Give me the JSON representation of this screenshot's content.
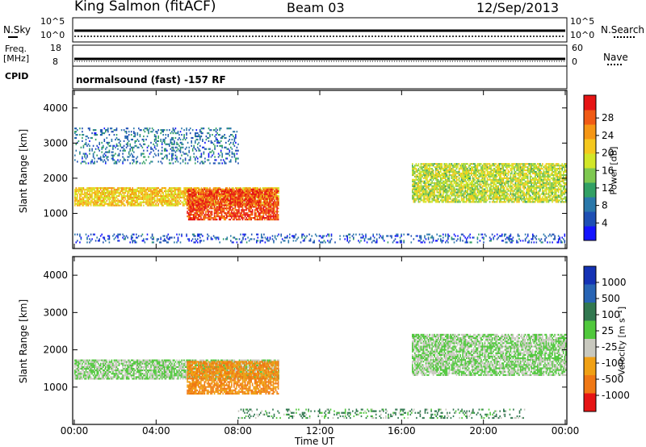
{
  "header": {
    "station": "King Salmon (fitACF)",
    "beam": "Beam 03",
    "date": "12/Sep/2013"
  },
  "status_panels": {
    "nsky_label": "N.Sky",
    "nsearch_label": "N.Search",
    "freq_label": "Freq.",
    "freq_unit": "[MHz]",
    "nave_label": "Nave",
    "cpid_label": "CPID",
    "cpid_text": "normalsound (fast) -157 RF",
    "noise_left_ticks": [
      "10^5",
      "10^0"
    ],
    "noise_right_ticks": [
      "10^5",
      "10^0"
    ],
    "freq_left_ticks": [
      "18",
      "8"
    ],
    "nave_right_ticks": [
      "60",
      "0"
    ]
  },
  "chart_data": [
    {
      "type": "heatmap",
      "name": "power",
      "ylabel": "Slant Range [km]",
      "xlabel": "",
      "ylim": [
        0,
        4500
      ],
      "yticks": [
        "1000",
        "2000",
        "3000",
        "4000"
      ],
      "xticks": [
        "00:00",
        "04:00",
        "08:00",
        "12:00",
        "16:00",
        "20:00",
        "00:00"
      ],
      "colorbar": {
        "label": "Power [dB]",
        "ticks": [
          "4",
          "8",
          "12",
          "16",
          "20",
          "24",
          "28"
        ],
        "colors": [
          "#1414ff",
          "#1e4fb4",
          "#2a78aa",
          "#32a064",
          "#7ec850",
          "#d2e628",
          "#f5c81e",
          "#f59614",
          "#f05a14",
          "#e61414"
        ]
      },
      "echo_regions": [
        {
          "name": "main-band",
          "time_h": [
            0,
            10
          ],
          "range_km": [
            1200,
            1700
          ],
          "power_db": 20
        },
        {
          "name": "sporadic-e-patch",
          "time_h": [
            5.5,
            10
          ],
          "range_km": [
            800,
            1700
          ],
          "power_db": 28
        },
        {
          "name": "far-range-echoes",
          "time_h": [
            0,
            8
          ],
          "range_km": [
            2400,
            3400
          ],
          "power_db": 6
        },
        {
          "name": "evening-band",
          "time_h": [
            16.5,
            24
          ],
          "range_km": [
            1300,
            2400
          ],
          "power_db": 16
        },
        {
          "name": "near-range-clutter",
          "time_h": [
            0,
            24
          ],
          "range_km": [
            150,
            400
          ],
          "power_db": 4
        }
      ]
    },
    {
      "type": "heatmap",
      "name": "velocity",
      "ylabel": "Slant Range [km]",
      "xlabel": "Time UT",
      "ylim": [
        0,
        4500
      ],
      "yticks": [
        "1000",
        "2000",
        "3000",
        "4000"
      ],
      "xticks": [
        "00:00",
        "04:00",
        "08:00",
        "12:00",
        "16:00",
        "20:00",
        "00:00"
      ],
      "colorbar": {
        "label": "Velocity [m s⁻¹]",
        "ticks": [
          "1000",
          "500",
          "100",
          "25",
          "-25",
          "-100",
          "-500",
          "-1000"
        ],
        "colors": [
          "#1432b4",
          "#2864b4",
          "#327850",
          "#50c83c",
          "#c8c8be",
          "#f0a014",
          "#f07814",
          "#e61414"
        ]
      },
      "echo_regions": [
        {
          "name": "main-band-ground-scatter",
          "time_h": [
            0,
            10
          ],
          "range_km": [
            1200,
            1700
          ],
          "velocity_ms": 0
        },
        {
          "name": "sporadic-e-patch",
          "time_h": [
            5.5,
            10
          ],
          "range_km": [
            800,
            1700
          ],
          "velocity_ms": -300
        },
        {
          "name": "evening-band-ground-scatter",
          "time_h": [
            16.5,
            24
          ],
          "range_km": [
            1300,
            2400
          ],
          "velocity_ms": 0
        },
        {
          "name": "near-range-clutter",
          "time_h": [
            8,
            22
          ],
          "range_km": [
            150,
            400
          ],
          "velocity_ms": 100
        }
      ]
    }
  ]
}
